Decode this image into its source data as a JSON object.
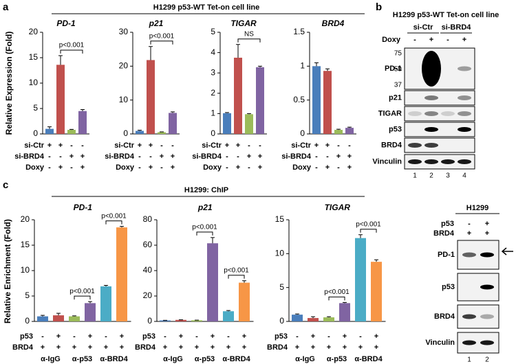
{
  "panel_a": {
    "label": "a",
    "title": "H1299 p53-WT Tet-on cell line",
    "y_label": "Relative Expression (Fold)",
    "conditions": [
      {
        "name": "si-Ctr",
        "signs": [
          "+",
          "+",
          "-",
          "-"
        ]
      },
      {
        "name": "si-BRD4",
        "signs": [
          "-",
          "-",
          "+",
          "+"
        ]
      },
      {
        "name": "Doxy",
        "signs": [
          "-",
          "+",
          "-",
          "+"
        ]
      }
    ]
  },
  "panel_b": {
    "label": "b",
    "title": "H1299 p53-WT Tet-on cell line",
    "groups": [
      "si-Ctr",
      "si-BRD4"
    ],
    "treatment": {
      "name": "Doxy",
      "signs": [
        "-",
        "+",
        "-",
        "+"
      ]
    },
    "rows": [
      "PD-1",
      "p21",
      "TIGAR",
      "p53",
      "BRD4",
      "Vinculin"
    ],
    "markers": [
      "75",
      "50",
      "37"
    ],
    "lanes": [
      "1",
      "2",
      "3",
      "4"
    ]
  },
  "panel_c": {
    "label": "c",
    "title": "H1299: ChIP",
    "y_label": "Relative Enrichment (Fold)",
    "conditions": [
      {
        "name": "p53",
        "signs": [
          "-",
          "+",
          "-",
          "+",
          "-",
          "+"
        ]
      },
      {
        "name": "BRD4",
        "signs": [
          "+",
          "+",
          "+",
          "+",
          "+",
          "+"
        ]
      }
    ],
    "group_labels": [
      "α-IgG",
      "α-p53",
      "α-BRD4"
    ]
  },
  "panel_c_blot": {
    "title": "H1299",
    "conditions": [
      {
        "name": "p53",
        "signs": [
          "-",
          "+"
        ]
      },
      {
        "name": "BRD4",
        "signs": [
          "+",
          "+"
        ]
      }
    ],
    "rows": [
      "PD-1",
      "p53",
      "BRD4",
      "Vinculin"
    ],
    "lanes": [
      "1",
      "2"
    ]
  },
  "chart_data": [
    {
      "type": "bar",
      "title": "PD-1",
      "values": [
        1.0,
        13.6,
        0.8,
        4.5
      ],
      "errors": [
        0.4,
        1.8,
        0.1,
        0.3
      ],
      "colors": [
        "#4a7ebb",
        "#c0504d",
        "#9bbb59",
        "#8064a2"
      ],
      "ylim": [
        0,
        20
      ],
      "yticks": [
        0,
        5,
        10,
        15,
        20
      ],
      "annotations": [
        "p<0.001"
      ]
    },
    {
      "type": "bar",
      "title": "p21",
      "values": [
        0.9,
        21.8,
        0.5,
        6.2
      ],
      "errors": [
        0.2,
        4.0,
        0.1,
        0.3
      ],
      "colors": [
        "#4a7ebb",
        "#c0504d",
        "#9bbb59",
        "#8064a2"
      ],
      "ylim": [
        0,
        30
      ],
      "yticks": [
        0,
        10,
        20,
        30
      ],
      "annotations": [
        "p<0.001"
      ]
    },
    {
      "type": "bar",
      "title": "TIGAR",
      "values": [
        1.02,
        3.75,
        0.97,
        3.28
      ],
      "errors": [
        0.03,
        0.65,
        0.03,
        0.05
      ],
      "colors": [
        "#4a7ebb",
        "#c0504d",
        "#9bbb59",
        "#8064a2"
      ],
      "ylim": [
        0,
        5
      ],
      "yticks": [
        0,
        1,
        2,
        3,
        4,
        5
      ],
      "annotations": [
        "NS"
      ]
    },
    {
      "type": "bar",
      "title": "BRD4",
      "values": [
        1.0,
        0.93,
        0.06,
        0.09
      ],
      "errors": [
        0.05,
        0.03,
        0.01,
        0.01
      ],
      "colors": [
        "#4a7ebb",
        "#c0504d",
        "#9bbb59",
        "#8064a2"
      ],
      "ylim": [
        0,
        1.5
      ],
      "yticks": [
        0,
        0.5,
        1,
        1.5
      ],
      "annotations": []
    },
    {
      "type": "bar",
      "title": "PD-1",
      "values": [
        1.0,
        1.2,
        1.0,
        3.6,
        6.9,
        18.5
      ],
      "errors": [
        0.2,
        0.4,
        0.1,
        0.3,
        0.2,
        0.2
      ],
      "colors": [
        "#4a7ebb",
        "#c0504d",
        "#9bbb59",
        "#8064a2",
        "#4bacc6",
        "#f79646"
      ],
      "ylim": [
        0,
        20
      ],
      "yticks": [
        0,
        5,
        10,
        15,
        20
      ],
      "annotations": [
        "p<0.001",
        "p<0.001"
      ]
    },
    {
      "type": "bar",
      "title": "p21",
      "values": [
        0.8,
        1.2,
        0.9,
        61.5,
        8.0,
        30.5
      ],
      "errors": [
        0.1,
        0.1,
        0.1,
        4.5,
        0.6,
        1.5
      ],
      "colors": [
        "#4a7ebb",
        "#c0504d",
        "#9bbb59",
        "#8064a2",
        "#4bacc6",
        "#f79646"
      ],
      "ylim": [
        0,
        80
      ],
      "yticks": [
        0,
        20,
        40,
        60,
        80
      ],
      "annotations": [
        "p<0.001",
        "p<0.001"
      ]
    },
    {
      "type": "bar",
      "title": "TIGAR",
      "values": [
        1.0,
        0.5,
        0.6,
        2.7,
        12.3,
        8.8
      ],
      "errors": [
        0.1,
        0.2,
        0.1,
        0.1,
        0.5,
        0.3
      ],
      "colors": [
        "#4a7ebb",
        "#c0504d",
        "#9bbb59",
        "#8064a2",
        "#4bacc6",
        "#f79646"
      ],
      "ylim": [
        0,
        15
      ],
      "yticks": [
        0,
        5,
        10,
        15
      ],
      "annotations": [
        "p<0.001",
        "p<0.001"
      ]
    }
  ]
}
